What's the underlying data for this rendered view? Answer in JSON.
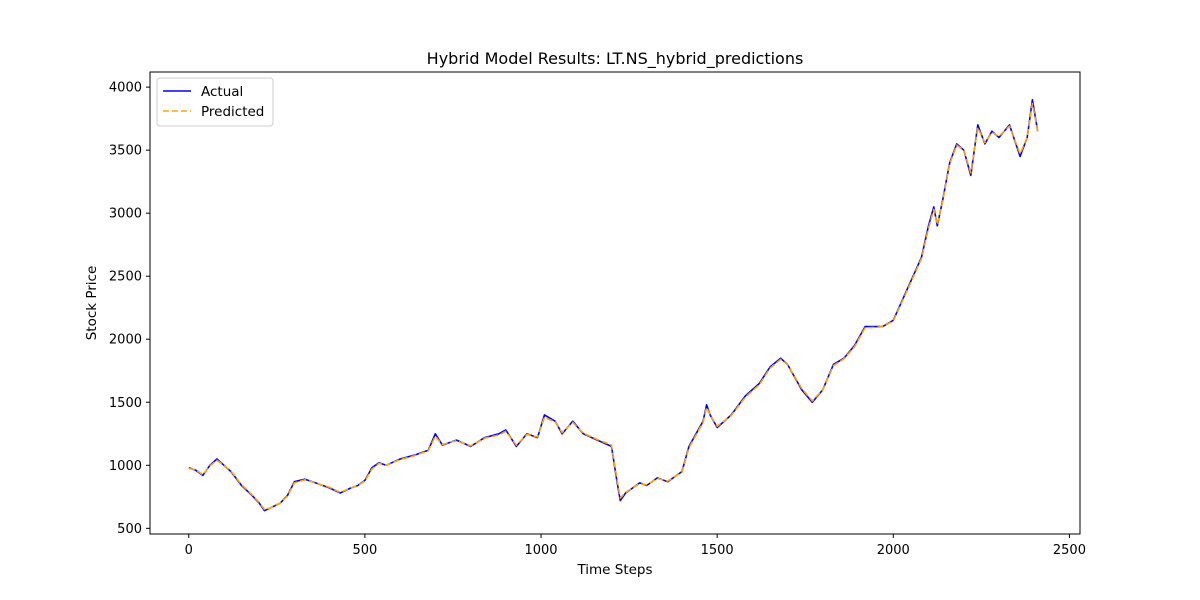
{
  "chart_data": {
    "type": "line",
    "title": "Hybrid Model Results: LT.NS_hybrid_predictions",
    "xlabel": "Time Steps",
    "ylabel": "Stock Price",
    "xlim": [
      -110,
      2530
    ],
    "ylim": [
      455,
      4120
    ],
    "xticks": [
      0,
      500,
      1000,
      1500,
      2000,
      2500
    ],
    "yticks": [
      500,
      1000,
      1500,
      2000,
      2500,
      3000,
      3500,
      4000
    ],
    "grid": false,
    "legend": "top-left",
    "series": [
      {
        "name": "Actual",
        "color": "#0000ff",
        "style": "solid",
        "x": [
          0,
          20,
          40,
          60,
          80,
          100,
          120,
          150,
          180,
          200,
          215,
          230,
          260,
          280,
          300,
          330,
          360,
          400,
          430,
          460,
          480,
          500,
          520,
          540,
          560,
          600,
          640,
          680,
          700,
          720,
          760,
          800,
          840,
          880,
          900,
          930,
          960,
          990,
          1010,
          1040,
          1060,
          1090,
          1120,
          1160,
          1200,
          1215,
          1225,
          1240,
          1260,
          1280,
          1300,
          1330,
          1360,
          1400,
          1420,
          1440,
          1460,
          1470,
          1480,
          1500,
          1540,
          1580,
          1620,
          1650,
          1680,
          1700,
          1740,
          1770,
          1800,
          1830,
          1860,
          1890,
          1920,
          1950,
          1970,
          2000,
          2040,
          2080,
          2100,
          2115,
          2125,
          2140,
          2160,
          2180,
          2200,
          2220,
          2240,
          2260,
          2280,
          2300,
          2330,
          2360,
          2380,
          2395,
          2410
        ],
        "y": [
          980,
          960,
          920,
          1000,
          1050,
          1000,
          950,
          840,
          760,
          700,
          640,
          660,
          700,
          760,
          870,
          890,
          860,
          820,
          780,
          820,
          840,
          880,
          980,
          1020,
          1000,
          1050,
          1080,
          1120,
          1250,
          1160,
          1200,
          1150,
          1220,
          1250,
          1280,
          1150,
          1250,
          1220,
          1400,
          1350,
          1250,
          1350,
          1250,
          1200,
          1150,
          880,
          720,
          780,
          820,
          860,
          840,
          900,
          870,
          950,
          1150,
          1250,
          1350,
          1480,
          1400,
          1300,
          1400,
          1550,
          1650,
          1780,
          1850,
          1800,
          1600,
          1500,
          1600,
          1800,
          1850,
          1950,
          2100,
          2100,
          2100,
          2150,
          2400,
          2650,
          2900,
          3050,
          2900,
          3100,
          3400,
          3550,
          3500,
          3300,
          3700,
          3550,
          3650,
          3600,
          3700,
          3450,
          3600,
          3900,
          3650
        ]
      },
      {
        "name": "Predicted",
        "color": "#ffa500",
        "style": "dashed",
        "x": [
          0,
          20,
          40,
          60,
          80,
          100,
          120,
          150,
          180,
          200,
          215,
          230,
          260,
          280,
          300,
          330,
          360,
          400,
          430,
          460,
          480,
          500,
          520,
          540,
          560,
          600,
          640,
          680,
          700,
          720,
          760,
          800,
          840,
          880,
          900,
          930,
          960,
          990,
          1010,
          1040,
          1060,
          1090,
          1120,
          1160,
          1200,
          1215,
          1225,
          1240,
          1260,
          1280,
          1300,
          1330,
          1360,
          1400,
          1420,
          1440,
          1460,
          1470,
          1480,
          1500,
          1540,
          1580,
          1620,
          1650,
          1680,
          1700,
          1740,
          1770,
          1800,
          1830,
          1860,
          1890,
          1920,
          1950,
          1970,
          2000,
          2040,
          2080,
          2100,
          2115,
          2125,
          2140,
          2160,
          2180,
          2200,
          2220,
          2240,
          2260,
          2280,
          2300,
          2330,
          2360,
          2380,
          2395,
          2410
        ],
        "y": [
          975,
          965,
          925,
          995,
          1040,
          1000,
          955,
          845,
          765,
          705,
          650,
          660,
          700,
          755,
          860,
          885,
          860,
          825,
          785,
          820,
          840,
          875,
          970,
          1015,
          1000,
          1045,
          1075,
          1115,
          1230,
          1165,
          1195,
          1155,
          1215,
          1240,
          1270,
          1160,
          1245,
          1225,
          1380,
          1345,
          1260,
          1340,
          1255,
          1205,
          1160,
          900,
          740,
          785,
          820,
          855,
          845,
          895,
          875,
          945,
          1140,
          1240,
          1340,
          1460,
          1400,
          1310,
          1395,
          1540,
          1640,
          1770,
          1840,
          1800,
          1610,
          1510,
          1600,
          1790,
          1845,
          1940,
          2090,
          2095,
          2100,
          2145,
          2390,
          2640,
          2880,
          3030,
          2910,
          3090,
          3390,
          3540,
          3500,
          3320,
          3680,
          3560,
          3640,
          3610,
          3690,
          3470,
          3600,
          3870,
          3650
        ]
      }
    ]
  }
}
